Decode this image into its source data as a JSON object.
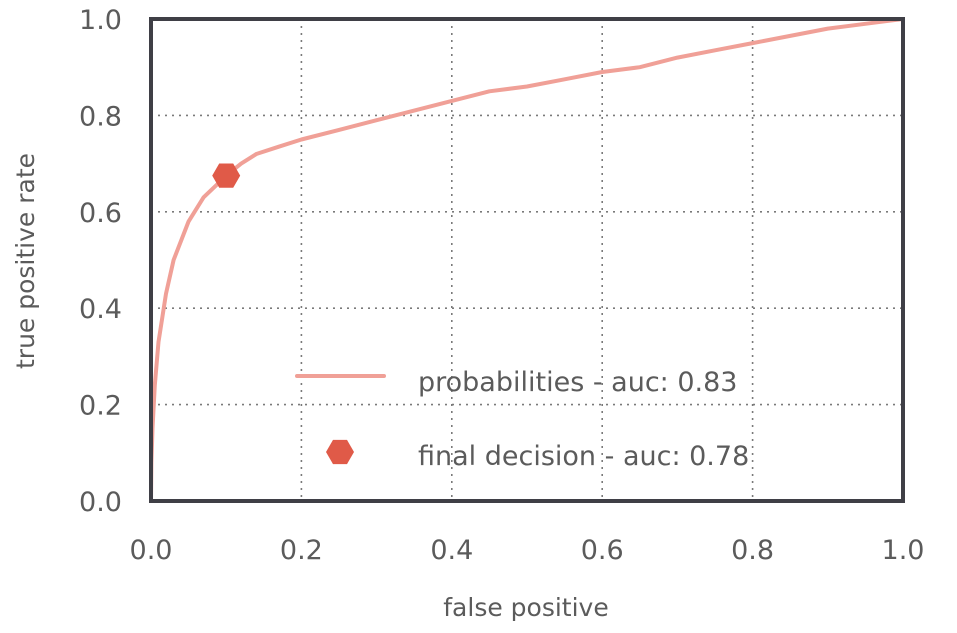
{
  "chart_data": {
    "type": "line",
    "title": "",
    "xlabel": "false positive",
    "ylabel": "true positive rate",
    "xlim": [
      0,
      1
    ],
    "ylim": [
      0,
      1
    ],
    "x_ticks": [
      "0.0",
      "0.2",
      "0.4",
      "0.6",
      "0.8",
      "1.0"
    ],
    "y_ticks": [
      "0.0",
      "0.2",
      "0.4",
      "0.6",
      "0.8",
      "1.0"
    ],
    "grid": true,
    "legend_position": "bottom-right",
    "colors": {
      "line": "#f0a097",
      "marker": "#e05a48",
      "frame": "#3f3f46"
    },
    "series": [
      {
        "name": "probabilities - auc: 0.83",
        "type": "line",
        "x": [
          0.0,
          0.0005,
          0.002,
          0.005,
          0.01,
          0.02,
          0.03,
          0.05,
          0.07,
          0.09,
          0.1,
          0.12,
          0.14,
          0.17,
          0.2,
          0.25,
          0.3,
          0.35,
          0.4,
          0.45,
          0.5,
          0.55,
          0.6,
          0.65,
          0.7,
          0.75,
          0.8,
          0.85,
          0.9,
          0.95,
          1.0
        ],
        "y": [
          0.0,
          0.08,
          0.15,
          0.24,
          0.33,
          0.43,
          0.5,
          0.58,
          0.63,
          0.66,
          0.675,
          0.7,
          0.72,
          0.735,
          0.75,
          0.77,
          0.79,
          0.81,
          0.83,
          0.85,
          0.86,
          0.875,
          0.89,
          0.9,
          0.92,
          0.935,
          0.95,
          0.965,
          0.98,
          0.99,
          1.0
        ]
      },
      {
        "name": "final decision - auc: 0.78",
        "type": "scatter",
        "marker": "hexagon",
        "x": [
          0.1
        ],
        "y": [
          0.675
        ]
      }
    ]
  }
}
